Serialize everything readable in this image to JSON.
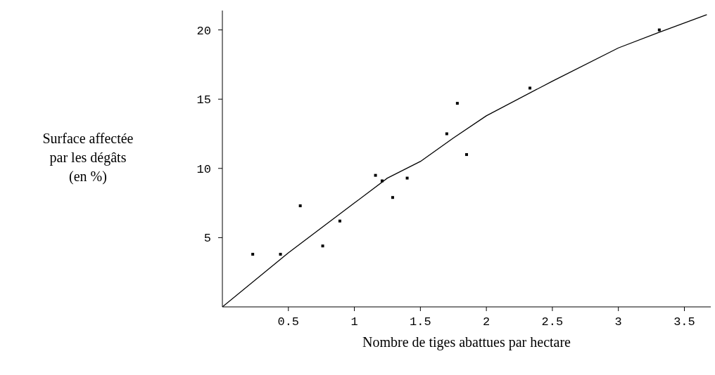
{
  "chart_data": {
    "type": "scatter",
    "xlabel": "Nombre de tiges abattues par hectare",
    "ylabel": "Surface affectée\npar les dégâts\n(en %)",
    "xlim": [
      0,
      3.7
    ],
    "ylim": [
      0,
      21.4
    ],
    "xticks": [
      0.5,
      1,
      1.5,
      2,
      2.5,
      3,
      3.5
    ],
    "yticks": [
      5,
      10,
      15,
      20
    ],
    "grid": false,
    "legend": false,
    "series": [
      {
        "marker": "square",
        "color": "#000000",
        "x": [
          0.23,
          0.44,
          0.59,
          0.76,
          0.89,
          1.16,
          1.21,
          1.29,
          1.4,
          1.7,
          1.78,
          1.85,
          2.33,
          3.31
        ],
        "values": [
          3.8,
          3.8,
          7.3,
          4.4,
          6.2,
          9.5,
          9.1,
          7.9,
          9.3,
          12.5,
          14.7,
          11.0,
          15.8,
          20.0
        ]
      },
      {
        "type": "line",
        "marker": "none",
        "color": "#000000",
        "x": [
          0,
          0.5,
          1,
          1.25,
          1.5,
          1.75,
          2,
          2.5,
          3,
          3.3,
          3.67
        ],
        "values": [
          0,
          3.9,
          7.5,
          9.3,
          10.5,
          12.2,
          13.8,
          16.3,
          18.7,
          19.8,
          21.1
        ]
      }
    ]
  }
}
